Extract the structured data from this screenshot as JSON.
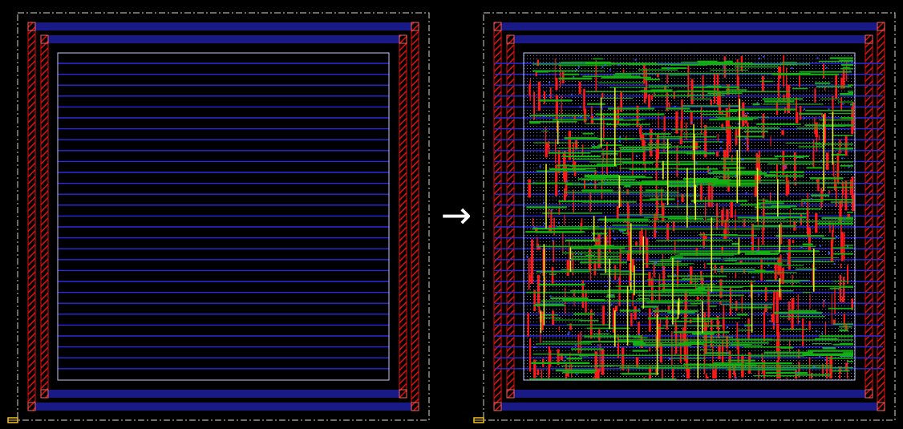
{
  "colors": {
    "background": "#000000",
    "die_outline": "#d8d8c8",
    "power_ring_horizontal": "#2a2ae0",
    "power_ring_vertical": "#e01010",
    "row_rails": "#2a2ae0",
    "core_boundary": "#c8c8ff",
    "metal_h": "#12b012",
    "metal_v": "#ff1a1a",
    "metal_top": "#e8e82a",
    "cells": "#8aa0e0",
    "origin_marker": "#f0c020",
    "arrow": "#ffffff"
  },
  "panels": [
    {
      "id": "before",
      "state": "empty floorplan"
    },
    {
      "id": "after",
      "state": "placed and routed"
    }
  ],
  "arrow": {
    "glyph": "→",
    "icon": "right-arrow-icon"
  }
}
